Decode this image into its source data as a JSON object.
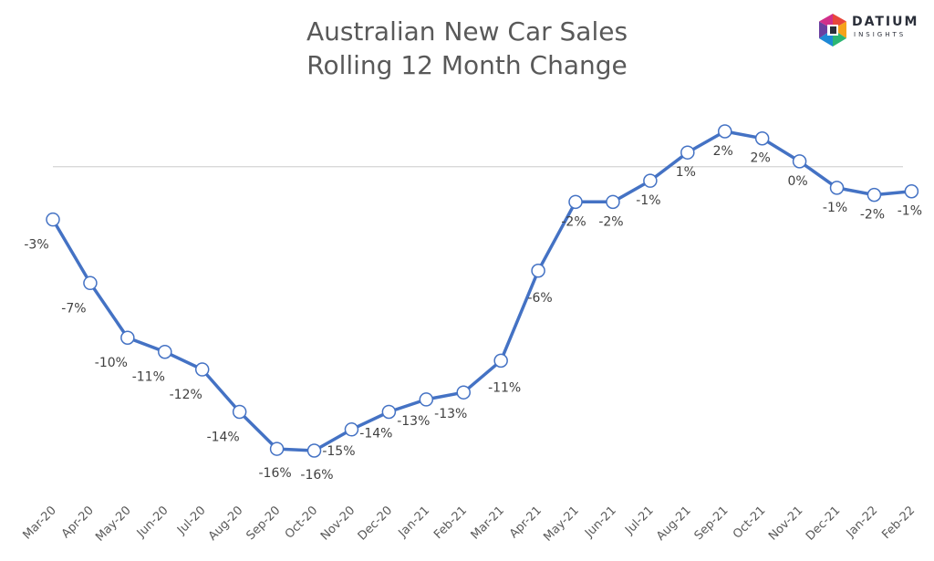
{
  "title_line1": "Australian New Car Sales",
  "title_line2": "Rolling 12 Month Change",
  "logo": {
    "word": "DATIUM",
    "sub": "INSIGHTS"
  },
  "colors": {
    "line": "#4472C4",
    "marker_fill": "#ffffff",
    "zero_line": "#D9D9D9",
    "text": "#595959"
  },
  "chart_data": {
    "type": "line",
    "title": "Australian New Car Sales Rolling 12 Month Change",
    "categories": [
      "Mar-20",
      "Apr-20",
      "May-20",
      "Jun-20",
      "Jul-20",
      "Aug-20",
      "Sep-20",
      "Oct-20",
      "Nov-20",
      "Dec-20",
      "Jan-21",
      "Feb-21",
      "Mar-21",
      "Apr-21",
      "May-21",
      "Jun-21",
      "Jul-21",
      "Aug-21",
      "Sep-21",
      "Oct-21",
      "Nov-21",
      "Dec-21",
      "Jan-22",
      "Feb-22"
    ],
    "values": [
      -3.0,
      -6.6,
      -9.7,
      -10.5,
      -11.5,
      -13.9,
      -16.0,
      -16.1,
      -14.9,
      -13.9,
      -13.2,
      -12.8,
      -11.0,
      -5.9,
      -2.0,
      -2.0,
      -0.8,
      0.8,
      2.0,
      1.6,
      0.3,
      -1.2,
      -1.6,
      -1.4
    ],
    "labels": [
      "-3%",
      "-7%",
      "-10%",
      "-11%",
      "-12%",
      "-14%",
      "-16%",
      "-16%",
      "-15%",
      "-14%",
      "-13%",
      "-13%",
      "-11%",
      "-6%",
      "-2%",
      "-2%",
      "-1%",
      "1%",
      "2%",
      "2%",
      "0%",
      "-1%",
      "-2%",
      "-1%"
    ],
    "ylim": [
      -16.1,
      2.0
    ],
    "grid": false,
    "zero_line": true,
    "legend": "none"
  }
}
